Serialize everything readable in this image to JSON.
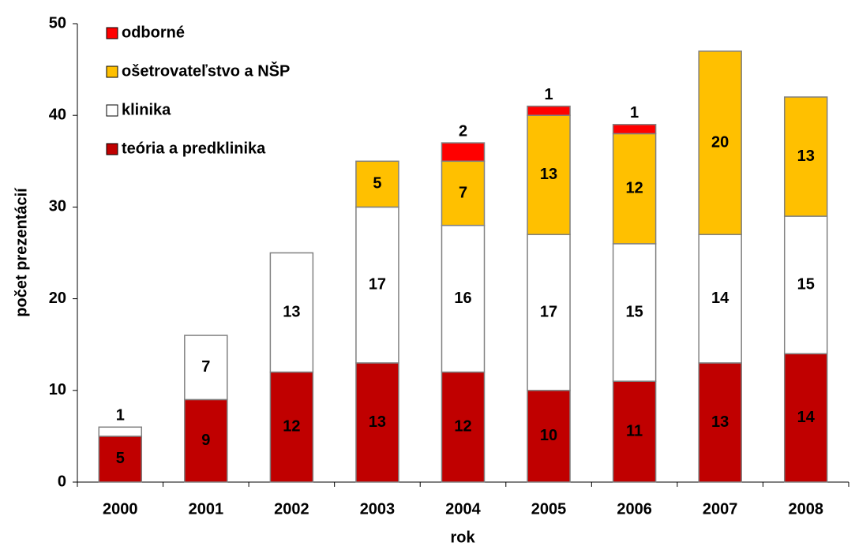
{
  "chart_data": {
    "type": "stacked_bar",
    "x_label": "rok",
    "y_label": "počet prezentácií",
    "categories": [
      "2000",
      "2001",
      "2002",
      "2003",
      "2004",
      "2005",
      "2006",
      "2007",
      "2008"
    ],
    "series": [
      {
        "name": "teória a predklinika",
        "color": "#c00000",
        "values": [
          5,
          9,
          12,
          13,
          12,
          10,
          11,
          13,
          14
        ]
      },
      {
        "name": "klinika",
        "color": "#ffffff",
        "values": [
          1,
          7,
          13,
          17,
          16,
          17,
          15,
          14,
          15
        ]
      },
      {
        "name": "ošetrovateľstvo a NŠP",
        "color": "#ffc000",
        "values": [
          null,
          null,
          null,
          5,
          7,
          13,
          12,
          20,
          13
        ]
      },
      {
        "name": "odborné",
        "color": "#ff0000",
        "values": [
          null,
          null,
          null,
          null,
          2,
          1,
          1,
          null,
          null
        ]
      }
    ],
    "ylim": [
      0,
      50
    ],
    "yticks": [
      0,
      10,
      20,
      30,
      40,
      50
    ],
    "legend": "upper left"
  }
}
